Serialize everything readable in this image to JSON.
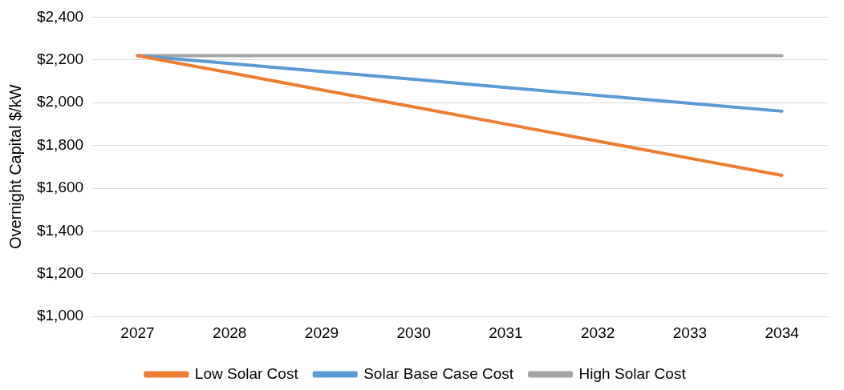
{
  "chart_data": {
    "type": "line",
    "ylabel": "Overnight Capital $/kW",
    "categories": [
      "2027",
      "2028",
      "2029",
      "2030",
      "2031",
      "2032",
      "2033",
      "2034"
    ],
    "series": [
      {
        "name": "Low Solar Cost",
        "color": "#ed7d31",
        "values": [
          2220,
          2140,
          2060,
          1980,
          1900,
          1820,
          1740,
          1660
        ]
      },
      {
        "name": "Solar Base Case Cost",
        "color": "#5b9bd5",
        "values": [
          2220,
          2183,
          2146,
          2109,
          2071,
          2034,
          1997,
          1960
        ]
      },
      {
        "name": "High Solar Cost",
        "color": "#a5a5a5",
        "values": [
          2220,
          2220,
          2220,
          2220,
          2220,
          2220,
          2220,
          2220
        ]
      }
    ],
    "ylim": [
      1000,
      2400
    ],
    "yticks": [
      {
        "value": 1000,
        "label": "$1,000"
      },
      {
        "value": 1200,
        "label": "$1,200"
      },
      {
        "value": 1400,
        "label": "$1,400"
      },
      {
        "value": 1600,
        "label": "$1,600"
      },
      {
        "value": 1800,
        "label": "$1,800"
      },
      {
        "value": 2000,
        "label": "$2,000"
      },
      {
        "value": 2200,
        "label": "$2,200"
      },
      {
        "value": 2400,
        "label": "$2,400"
      }
    ],
    "grid": "y",
    "legend": "bottom",
    "marker": "none",
    "line_style": "solid"
  }
}
